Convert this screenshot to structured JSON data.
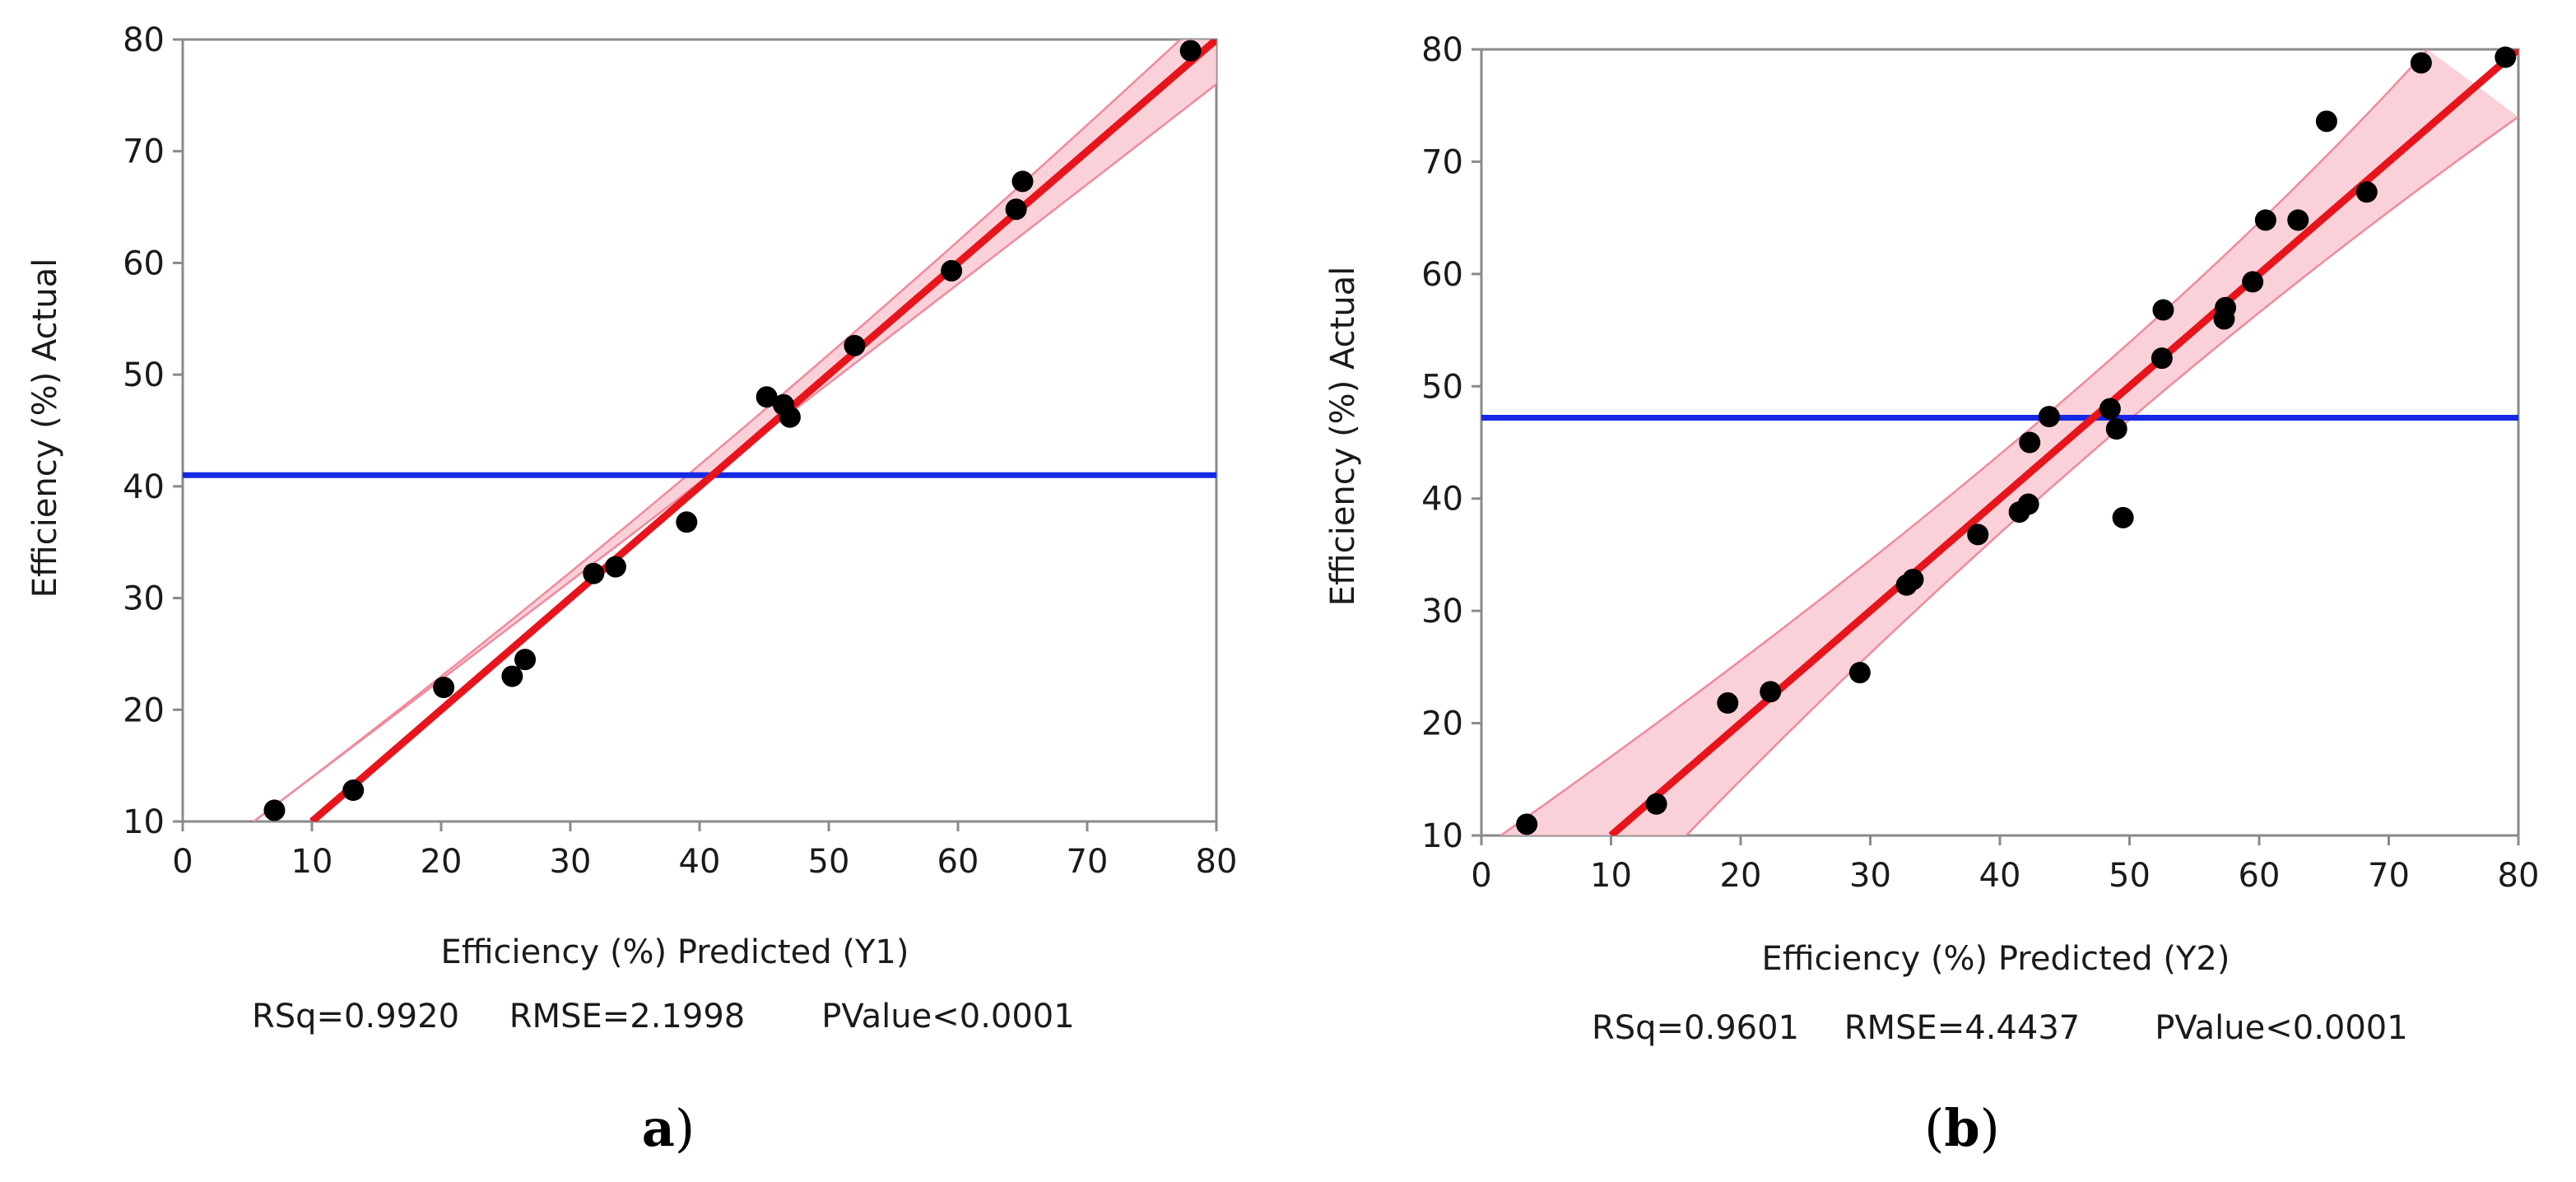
{
  "chart_data": [
    {
      "type": "scatter",
      "panel_label": {
        "prefix": "",
        "letter": "a",
        "suffix": ")"
      },
      "xlabel": "Efficiency (%) Predicted (Y1)",
      "ylabel": "Efficiency (%) Actual",
      "xlim": [
        0,
        80
      ],
      "ylim": [
        10,
        80
      ],
      "xticks": [
        0,
        10,
        20,
        30,
        40,
        50,
        60,
        70,
        80
      ],
      "yticks": [
        10,
        20,
        30,
        40,
        50,
        60,
        70,
        80
      ],
      "mean_line": 41,
      "fit_line": {
        "from": [
          10,
          10
        ],
        "to": [
          80,
          80
        ]
      },
      "confidence_band": {
        "lower": [
          [
            5.5,
            10
          ],
          [
            80,
            76
          ]
        ],
        "upper": [
          [
            5.5,
            10
          ],
          [
            80,
            83
          ]
        ],
        "center_x": 41
      },
      "stats": {
        "rsq": "RSq=0.9920",
        "rmse": "RMSE=2.1998",
        "pvalue": "PValue<0.0001"
      },
      "points": [
        [
          7.1,
          11
        ],
        [
          13.2,
          12.8
        ],
        [
          20.2,
          22
        ],
        [
          25.5,
          23
        ],
        [
          26.5,
          24.5
        ],
        [
          31.8,
          32.2
        ],
        [
          33.5,
          32.8
        ],
        [
          39,
          36.8
        ],
        [
          45.2,
          48
        ],
        [
          46.5,
          47.3
        ],
        [
          47,
          46.2
        ],
        [
          52,
          52.6
        ],
        [
          59.5,
          59.3
        ],
        [
          64.5,
          64.8
        ],
        [
          65,
          67.3
        ],
        [
          78,
          79
        ]
      ]
    },
    {
      "type": "scatter",
      "panel_label": {
        "prefix": "(",
        "letter": "b",
        "suffix": ")"
      },
      "xlabel": "Efficiency (%) Predicted (Y2)",
      "ylabel": "Efficiency (%) Actual",
      "xlim": [
        0,
        80
      ],
      "ylim": [
        10,
        80
      ],
      "xticks": [
        0,
        10,
        20,
        30,
        40,
        50,
        60,
        70,
        80
      ],
      "yticks": [
        10,
        20,
        30,
        40,
        50,
        60,
        70,
        80
      ],
      "mean_line": 47.2,
      "fit_line": {
        "from": [
          10,
          10
        ],
        "to": [
          80,
          80
        ]
      },
      "confidence_band": {
        "lower": [
          [
            15.8,
            10
          ],
          [
            80,
            74
          ]
        ],
        "upper": [
          [
            1.5,
            10
          ],
          [
            73,
            80
          ]
        ],
        "center_x": 47
      },
      "stats": {
        "rsq": "RSq=0.9601",
        "rmse": "RMSE=4.4437",
        "pvalue": "PValue<0.0001"
      },
      "points": [
        [
          3.5,
          11
        ],
        [
          13.5,
          12.8
        ],
        [
          19,
          21.8
        ],
        [
          22.3,
          22.8
        ],
        [
          29.2,
          24.5
        ],
        [
          32.8,
          32.3
        ],
        [
          33.3,
          32.8
        ],
        [
          38.3,
          36.8
        ],
        [
          41.5,
          38.8
        ],
        [
          42.2,
          39.5
        ],
        [
          42.3,
          45
        ],
        [
          43.8,
          47.3
        ],
        [
          48.5,
          48
        ],
        [
          49,
          46.2
        ],
        [
          49.5,
          38.3
        ],
        [
          52.5,
          52.5
        ],
        [
          52.6,
          56.8
        ],
        [
          57.3,
          56
        ],
        [
          57.4,
          57
        ],
        [
          59.5,
          59.3
        ],
        [
          60.5,
          64.8
        ],
        [
          63,
          64.8
        ],
        [
          65.2,
          73.6
        ],
        [
          68.3,
          67.3
        ],
        [
          72.5,
          78.8
        ],
        [
          79,
          79.3
        ]
      ]
    }
  ]
}
